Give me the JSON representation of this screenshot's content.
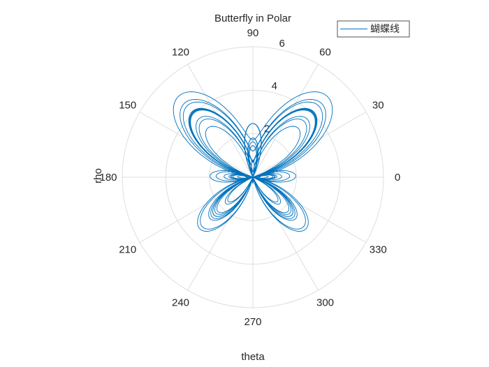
{
  "chart_data": {
    "type": "line",
    "coordinate_system": "polar",
    "title": "Butterfly in Polar",
    "xlabel": "theta",
    "ylabel": "rho",
    "theta_unit": "degrees",
    "theta_ticks": [
      0,
      30,
      60,
      90,
      120,
      150,
      180,
      210,
      240,
      270,
      300,
      330
    ],
    "rho_ticks": [
      2,
      4,
      6
    ],
    "rho_lim": [
      0,
      6
    ],
    "grid": true,
    "legend": {
      "position": "top-right",
      "entries": [
        "蝴蝶线"
      ]
    },
    "series": [
      {
        "name": "蝴蝶线",
        "color": "#0072BD",
        "equation": "rho = exp(sin(theta)) - 2*cos(4*theta) + sin((2*theta - pi)/24)^5",
        "theta_range": [
          0,
          150.796
        ],
        "samples": 6000
      }
    ]
  },
  "colors": {
    "series": "#0072BD",
    "grid": "#dedede",
    "text": "#262626"
  }
}
